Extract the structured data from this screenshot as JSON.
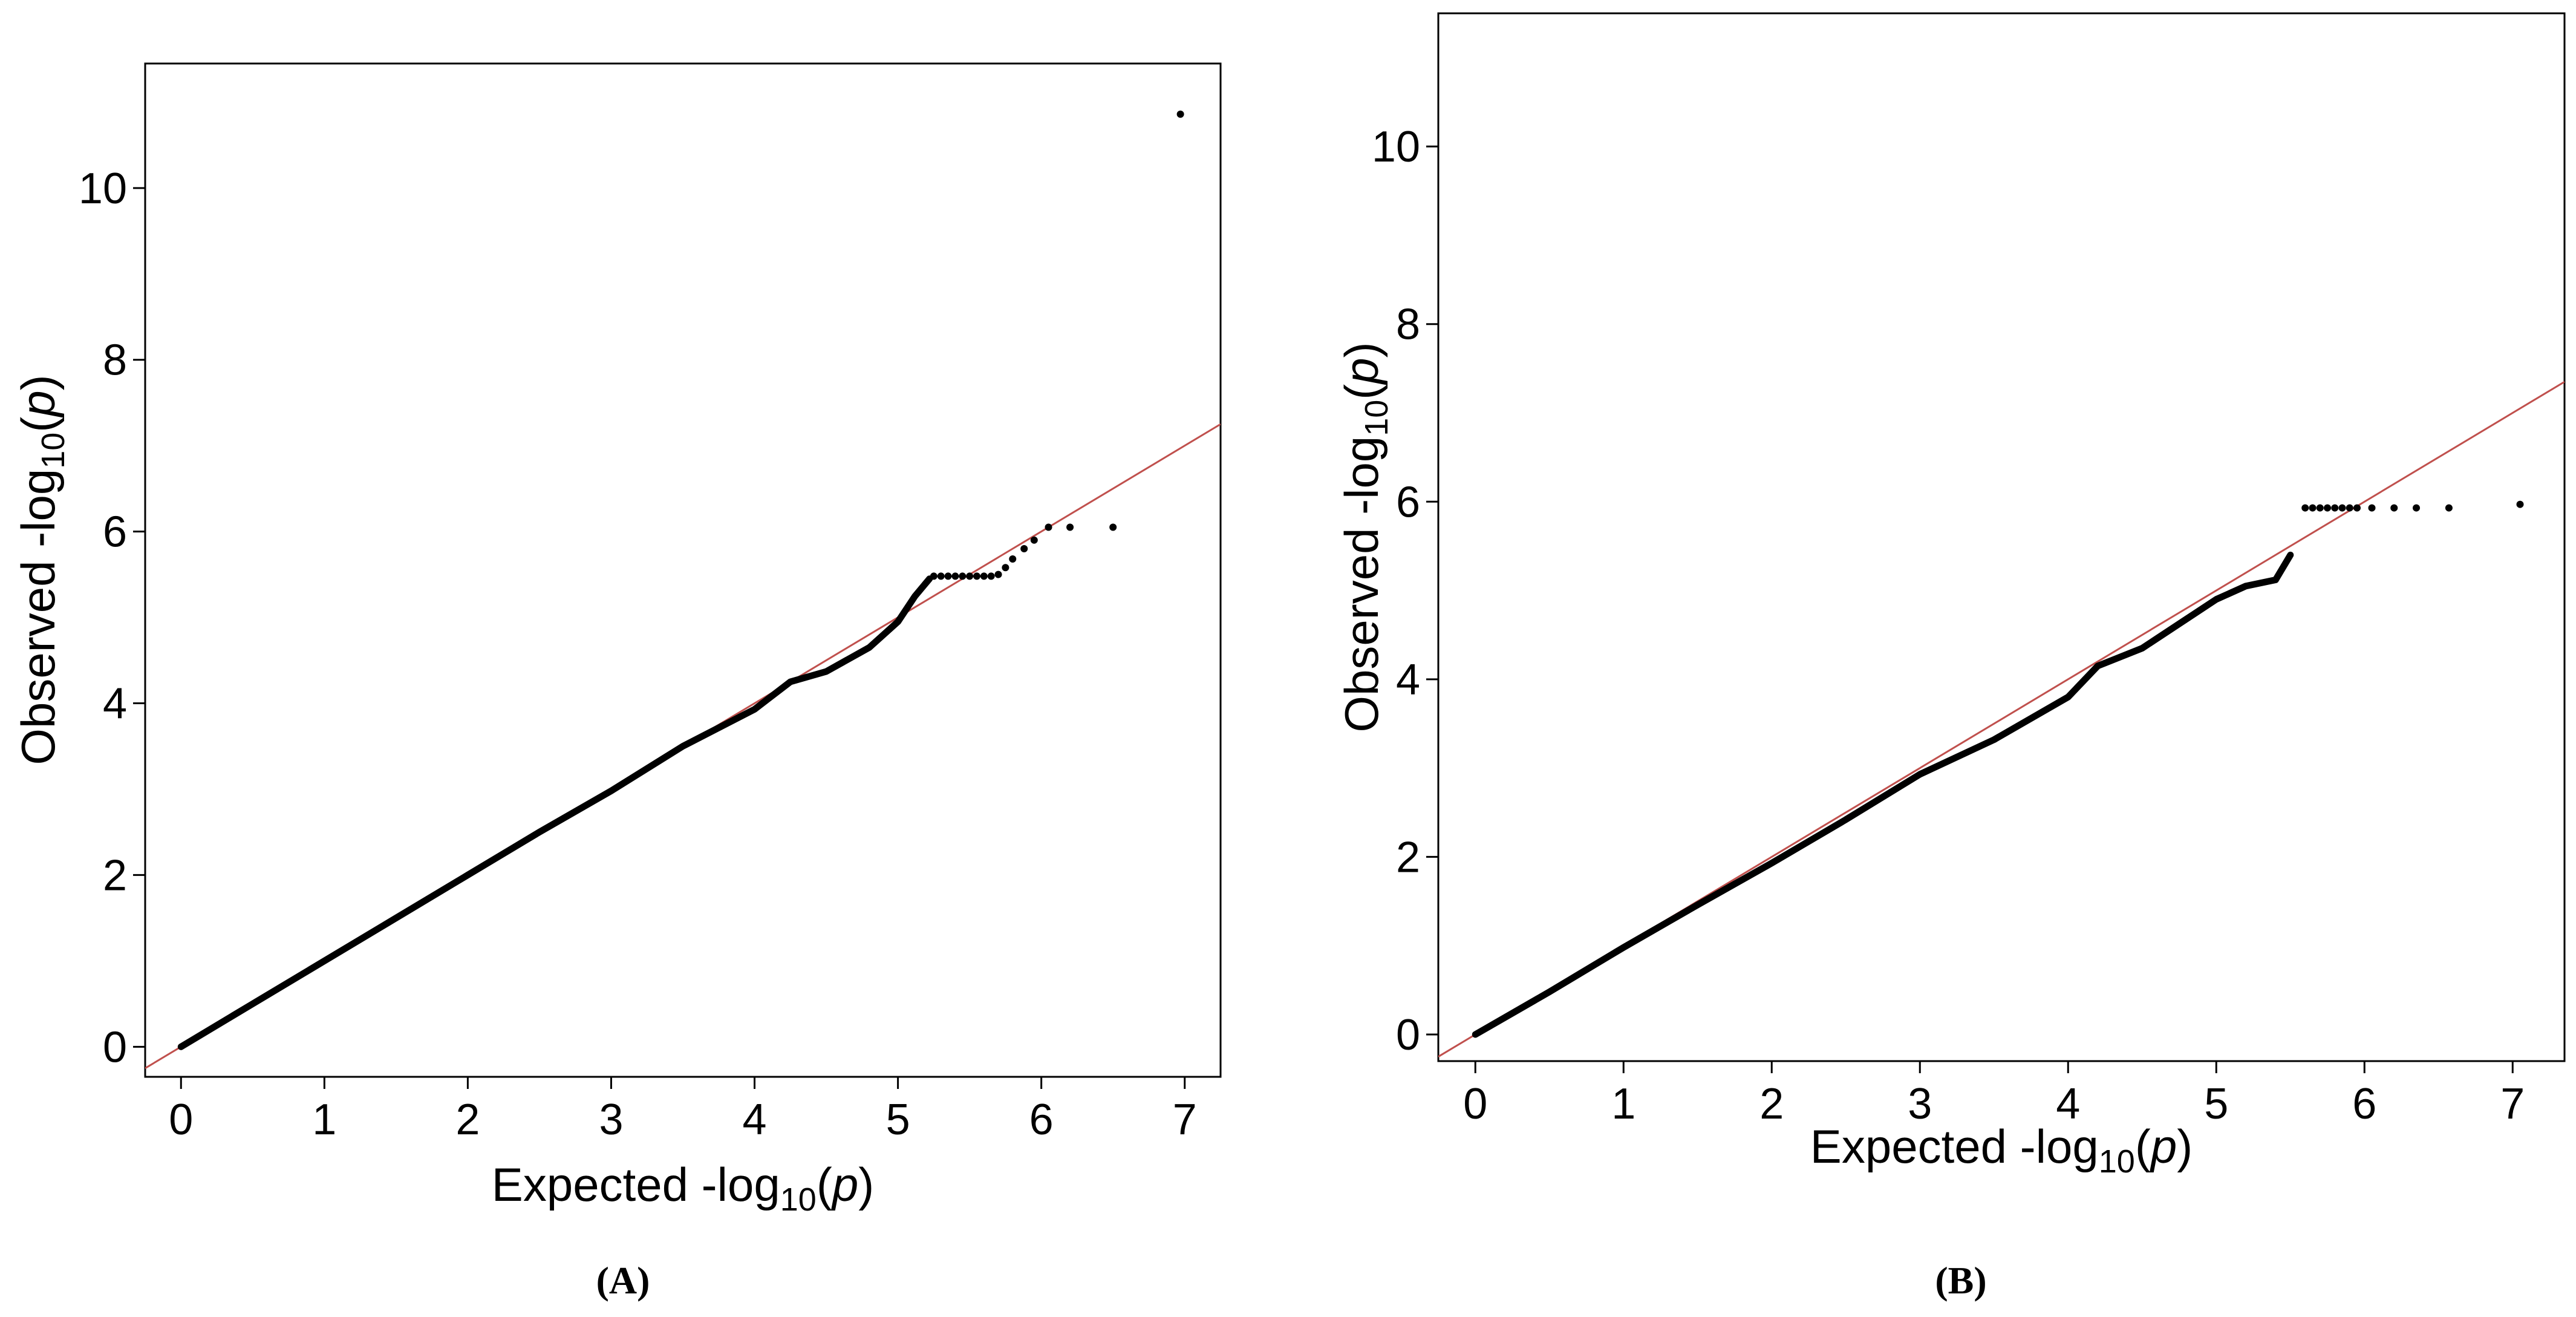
{
  "colors": {
    "reference_line": "#c0504d",
    "points": "#000000",
    "frame": "#000000"
  },
  "chart_data": [
    {
      "type": "scatter",
      "panel": "A",
      "panel_label": "A",
      "xlabel_prefix": "Expected -log",
      "xlabel_sub": "10",
      "xlabel_var": "p",
      "ylabel_prefix": "Observed -log",
      "ylabel_sub": "10",
      "ylabel_var": "p",
      "xlim": [
        -0.25,
        7.25
      ],
      "ylim": [
        -0.35,
        11.45
      ],
      "xticks": [
        0,
        1,
        2,
        3,
        4,
        5,
        6,
        7
      ],
      "yticks": [
        0,
        2,
        4,
        6,
        8,
        10
      ],
      "reference_line": {
        "slope": 1,
        "intercept": 0
      },
      "trend": [
        [
          0,
          0
        ],
        [
          0.5,
          0.5
        ],
        [
          1,
          1
        ],
        [
          1.5,
          1.5
        ],
        [
          2,
          2
        ],
        [
          2.5,
          2.5
        ],
        [
          3,
          2.98
        ],
        [
          3.5,
          3.5
        ],
        [
          4,
          3.93
        ],
        [
          4.25,
          4.25
        ],
        [
          4.5,
          4.37
        ],
        [
          4.8,
          4.65
        ],
        [
          5.0,
          4.95
        ],
        [
          5.12,
          5.25
        ],
        [
          5.22,
          5.45
        ]
      ],
      "points": [
        [
          5.25,
          5.48
        ],
        [
          5.3,
          5.48
        ],
        [
          5.35,
          5.48
        ],
        [
          5.4,
          5.48
        ],
        [
          5.45,
          5.48
        ],
        [
          5.5,
          5.48
        ],
        [
          5.55,
          5.48
        ],
        [
          5.6,
          5.48
        ],
        [
          5.65,
          5.48
        ],
        [
          5.7,
          5.5
        ],
        [
          5.75,
          5.58
        ],
        [
          5.8,
          5.68
        ],
        [
          5.88,
          5.8
        ],
        [
          5.95,
          5.9
        ],
        [
          6.05,
          6.05
        ],
        [
          6.2,
          6.05
        ],
        [
          6.5,
          6.05
        ],
        [
          6.97,
          10.86
        ]
      ]
    },
    {
      "type": "scatter",
      "panel": "B",
      "panel_label": "B",
      "xlabel_prefix": "Expected -log",
      "xlabel_sub": "10",
      "xlabel_var": "p",
      "ylabel_prefix": "Observed -log",
      "ylabel_sub": "10",
      "ylabel_var": "p",
      "xlim": [
        -0.25,
        7.35
      ],
      "ylim": [
        -0.3,
        11.5
      ],
      "xticks": [
        0,
        1,
        2,
        3,
        4,
        5,
        6,
        7
      ],
      "yticks": [
        0,
        2,
        4,
        6,
        8,
        10
      ],
      "reference_line": {
        "slope": 1,
        "intercept": 0
      },
      "trend": [
        [
          0,
          0
        ],
        [
          0.5,
          0.48
        ],
        [
          1,
          0.98
        ],
        [
          1.5,
          1.46
        ],
        [
          2,
          1.93
        ],
        [
          2.5,
          2.42
        ],
        [
          3,
          2.93
        ],
        [
          3.5,
          3.32
        ],
        [
          4,
          3.8
        ],
        [
          4.2,
          4.15
        ],
        [
          4.5,
          4.35
        ],
        [
          4.8,
          4.68
        ],
        [
          5.0,
          4.9
        ],
        [
          5.2,
          5.05
        ],
        [
          5.4,
          5.12
        ],
        [
          5.5,
          5.4
        ]
      ],
      "points": [
        [
          5.6,
          5.93
        ],
        [
          5.65,
          5.93
        ],
        [
          5.7,
          5.93
        ],
        [
          5.75,
          5.93
        ],
        [
          5.8,
          5.93
        ],
        [
          5.85,
          5.93
        ],
        [
          5.9,
          5.93
        ],
        [
          5.95,
          5.93
        ],
        [
          6.05,
          5.93
        ],
        [
          6.2,
          5.93
        ],
        [
          6.35,
          5.93
        ],
        [
          6.57,
          5.93
        ],
        [
          7.05,
          5.97
        ]
      ]
    }
  ]
}
